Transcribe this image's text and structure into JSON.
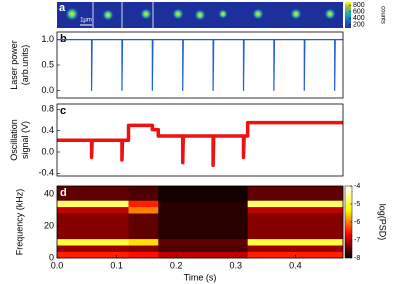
{
  "chart_data": [
    {
      "type": "image",
      "panel_label": "a",
      "scale_bar": "1μm",
      "colorbar_label": "counts",
      "colorbar_lim": [
        100,
        900
      ],
      "colorbar_ticks": [
        800,
        600,
        400,
        200
      ]
    },
    {
      "type": "line",
      "panel_label": "b",
      "ylabel": [
        "Laser power",
        "(arb.units)"
      ],
      "color": "#1f5fd6",
      "xlim": [
        0,
        0.48
      ],
      "ylim": [
        -0.15,
        1.15
      ],
      "yticks": [
        {
          "value": 0,
          "label": "0.0"
        },
        {
          "value": 0.5,
          "label": "0.5"
        },
        {
          "value": 1,
          "label": "1.0"
        }
      ],
      "x": [
        0,
        0.058,
        0.058,
        0.059,
        0.109,
        0.109,
        0.11,
        0.16,
        0.16,
        0.161,
        0.211,
        0.211,
        0.212,
        0.262,
        0.262,
        0.263,
        0.313,
        0.313,
        0.314,
        0.364,
        0.364,
        0.365,
        0.415,
        0.415,
        0.416,
        0.466,
        0.466,
        0.467,
        0.48
      ],
      "values": [
        1,
        1,
        0,
        1,
        1,
        0,
        1,
        1,
        0,
        1,
        1,
        0,
        1,
        1,
        0,
        1,
        1,
        0,
        1,
        1,
        0,
        1,
        1,
        0,
        1,
        1,
        0,
        1,
        1
      ]
    },
    {
      "type": "line",
      "panel_label": "c",
      "ylabel": [
        "Oscillation",
        "signal (V)"
      ],
      "color": "#ee1111",
      "xlim": [
        0,
        0.48
      ],
      "ylim": [
        -0.45,
        0.9
      ],
      "yticks": [
        -0.4,
        {
          "value": 0,
          "label": "0.0"
        },
        0.4,
        0.8
      ],
      "x": [
        0,
        0.058,
        0.058,
        0.059,
        0.109,
        0.109,
        0.11,
        0.12,
        0.12,
        0.16,
        0.16,
        0.17,
        0.17,
        0.211,
        0.211,
        0.212,
        0.262,
        0.262,
        0.263,
        0.313,
        0.313,
        0.314,
        0.32,
        0.32,
        0.48
      ],
      "values": [
        0.22,
        0.22,
        -0.1,
        0.22,
        0.22,
        -0.15,
        0.22,
        0.22,
        0.5,
        0.5,
        0.42,
        0.42,
        0.3,
        0.3,
        -0.2,
        0.3,
        0.3,
        -0.25,
        0.3,
        0.3,
        -0.1,
        0.3,
        0.3,
        0.55,
        0.55
      ]
    },
    {
      "type": "heatmap",
      "panel_label": "d",
      "ylabel": [
        "Frequency (kHz)"
      ],
      "xlabel": "Time (s)",
      "xlim": [
        0,
        0.48
      ],
      "ylim": [
        0,
        45
      ],
      "xticks": [
        {
          "value": 0,
          "label": "0.0"
        },
        0.1,
        0.2,
        0.3,
        0.4
      ],
      "yticks": [
        0,
        20,
        40
      ],
      "x_edges": [
        0,
        0.12,
        0.17,
        0.32,
        0.48
      ],
      "y_edges": [
        0,
        4,
        8,
        12,
        28,
        32,
        36,
        45
      ],
      "z": [
        [
          -6.5,
          -6.6,
          -7,
          -6.5
        ],
        [
          -7.2,
          -7.3,
          -7.6,
          -7.2
        ],
        [
          -5,
          -5.5,
          -7.5,
          -5
        ],
        [
          -7.3,
          -7.5,
          -7.8,
          -7.3
        ],
        [
          -7,
          -6,
          -7.8,
          -7
        ],
        [
          -4.8,
          -6.5,
          -7.8,
          -4.8
        ],
        [
          -7.5,
          -7.6,
          -7.9,
          -7.5
        ]
      ],
      "colorbar_label": "log(PSD)",
      "zlim": [
        -8,
        -4
      ],
      "colorbar_ticks": [
        -4,
        -5,
        -6,
        -7,
        -8
      ]
    }
  ]
}
